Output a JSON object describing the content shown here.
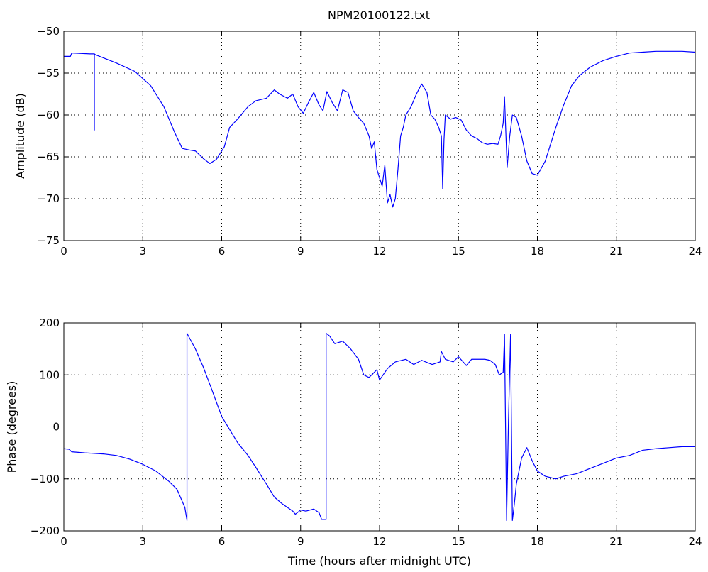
{
  "figure": {
    "title": "NPM20100122.txt"
  },
  "chart_data": [
    {
      "type": "line",
      "title": "NPM20100122.txt",
      "xlabel": "",
      "ylabel": "Amplitude (dB)",
      "xlim": [
        0,
        24
      ],
      "ylim": [
        -75,
        -50
      ],
      "xticks": [
        0,
        3,
        6,
        9,
        12,
        15,
        18,
        21,
        24
      ],
      "yticks": [
        -75,
        -70,
        -65,
        -60,
        -55,
        -50
      ],
      "grid": true,
      "color": "#0000ff",
      "series": [
        {
          "x": [
            0,
            0.25,
            0.3,
            1.0,
            1.15,
            1.15,
            1.16,
            1.16,
            1.2,
            2.0,
            2.7,
            3.3,
            3.8,
            4.2,
            4.5,
            4.8,
            5.0,
            5.3,
            5.55,
            5.8,
            6.1,
            6.3,
            6.6,
            7.0,
            7.3,
            7.7,
            8.0,
            8.2,
            8.5,
            8.7,
            8.9,
            9.1,
            9.3,
            9.5,
            9.7,
            9.85,
            10.0,
            10.2,
            10.4,
            10.6,
            10.8,
            11.0,
            11.2,
            11.4,
            11.6,
            11.7,
            11.8,
            11.9,
            12.0,
            12.1,
            12.2,
            12.3,
            12.4,
            12.5,
            12.6,
            12.7,
            12.8,
            12.9,
            13.0,
            13.2,
            13.4,
            13.6,
            13.8,
            13.95,
            14.1,
            14.25,
            14.35,
            14.4,
            14.45,
            14.5,
            14.7,
            14.9,
            15.1,
            15.3,
            15.5,
            15.7,
            15.9,
            16.1,
            16.3,
            16.5,
            16.6,
            16.7,
            16.75,
            16.85,
            16.95,
            17.05,
            17.2,
            17.4,
            17.6,
            17.8,
            18.0,
            18.3,
            18.7,
            19.0,
            19.3,
            19.6,
            20.0,
            20.5,
            21.0,
            21.5,
            22.0,
            22.5,
            23.0,
            23.5,
            24.0
          ],
          "y": [
            -53.0,
            -53.0,
            -52.6,
            -52.7,
            -52.7,
            -61.8,
            -61.8,
            -52.7,
            -52.8,
            -53.8,
            -54.8,
            -56.5,
            -59.0,
            -62.0,
            -64.0,
            -64.2,
            -64.3,
            -65.2,
            -65.8,
            -65.3,
            -63.8,
            -61.5,
            -60.5,
            -59.0,
            -58.3,
            -58.0,
            -57.0,
            -57.5,
            -58.0,
            -57.5,
            -59.0,
            -59.8,
            -58.5,
            -57.3,
            -58.8,
            -59.5,
            -57.2,
            -58.5,
            -59.5,
            -57.0,
            -57.3,
            -59.5,
            -60.3,
            -61.0,
            -62.5,
            -64.0,
            -63.2,
            -66.5,
            -67.5,
            -68.5,
            -66.0,
            -70.5,
            -69.5,
            -71.0,
            -70.0,
            -66.5,
            -62.5,
            -61.5,
            -60.0,
            -59.0,
            -57.5,
            -56.3,
            -57.3,
            -60.0,
            -60.5,
            -61.5,
            -62.5,
            -68.8,
            -63.0,
            -60.0,
            -60.5,
            -60.3,
            -60.6,
            -61.8,
            -62.5,
            -62.8,
            -63.3,
            -63.5,
            -63.4,
            -63.5,
            -62.5,
            -61.0,
            -57.8,
            -66.3,
            -62.5,
            -60.0,
            -60.3,
            -62.5,
            -65.5,
            -67.0,
            -67.2,
            -65.5,
            -61.5,
            -58.8,
            -56.5,
            -55.3,
            -54.3,
            -53.5,
            -53.0,
            -52.6,
            -52.5,
            -52.4,
            -52.4,
            -52.4,
            -52.5
          ]
        }
      ]
    },
    {
      "type": "line",
      "title": "",
      "xlabel": "Time (hours after midnight UTC)",
      "ylabel": "Phase (degrees)",
      "xlim": [
        0,
        24
      ],
      "ylim": [
        -200,
        200
      ],
      "xticks": [
        0,
        3,
        6,
        9,
        12,
        15,
        18,
        21,
        24
      ],
      "yticks": [
        -200,
        -100,
        0,
        100,
        200
      ],
      "grid": true,
      "color": "#0000ff",
      "series": [
        {
          "x": [
            0,
            0.2,
            0.3,
            0.8,
            1.5,
            2.0,
            2.5,
            3.0,
            3.5,
            4.0,
            4.3,
            4.6,
            4.68,
            4.68,
            5.0,
            5.3,
            5.6,
            6.0,
            6.3,
            6.6,
            7.0,
            7.3,
            7.7,
            8.0,
            8.3,
            8.7,
            8.8,
            9.0,
            9.2,
            9.5,
            9.7,
            9.8,
            9.97,
            9.97,
            10.1,
            10.3,
            10.6,
            10.9,
            11.2,
            11.4,
            11.6,
            11.9,
            12.0,
            12.3,
            12.6,
            13.0,
            13.3,
            13.6,
            14.0,
            14.3,
            14.35,
            14.5,
            14.8,
            15.0,
            15.3,
            15.5,
            15.8,
            16.0,
            16.2,
            16.4,
            16.55,
            16.7,
            16.75,
            16.83,
            16.9,
            16.98,
            17.05,
            17.12,
            17.2,
            17.4,
            17.6,
            17.8,
            18.0,
            18.3,
            18.7,
            19.0,
            19.5,
            20.0,
            20.5,
            21.0,
            21.5,
            22.0,
            22.5,
            23.0,
            23.5,
            24.0
          ],
          "y": [
            -42,
            -43,
            -48,
            -50,
            -52,
            -55,
            -62,
            -72,
            -85,
            -105,
            -120,
            -155,
            -180,
            180,
            150,
            115,
            75,
            20,
            -5,
            -30,
            -55,
            -78,
            -110,
            -135,
            -148,
            -162,
            -168,
            -160,
            -162,
            -158,
            -165,
            -178,
            -178,
            180,
            175,
            160,
            165,
            150,
            130,
            100,
            95,
            110,
            90,
            112,
            125,
            130,
            120,
            128,
            120,
            125,
            145,
            130,
            125,
            135,
            118,
            130,
            130,
            130,
            128,
            120,
            100,
            105,
            178,
            -180,
            10,
            178,
            -180,
            -150,
            -110,
            -60,
            -40,
            -65,
            -85,
            -95,
            -100,
            -95,
            -90,
            -80,
            -70,
            -60,
            -55,
            -45,
            -42,
            -40,
            -38,
            -38
          ]
        }
      ]
    }
  ]
}
